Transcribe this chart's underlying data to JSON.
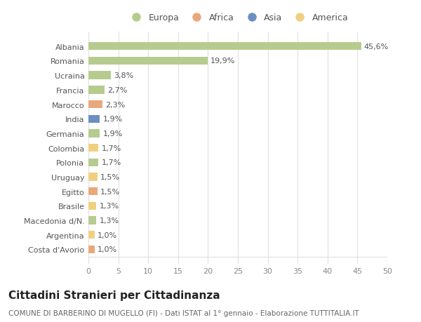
{
  "countries": [
    "Albania",
    "Romania",
    "Ucraina",
    "Francia",
    "Marocco",
    "India",
    "Germania",
    "Colombia",
    "Polonia",
    "Uruguay",
    "Egitto",
    "Brasile",
    "Macedonia d/N.",
    "Argentina",
    "Costa d'Avorio"
  ],
  "values": [
    45.6,
    19.9,
    3.8,
    2.7,
    2.3,
    1.9,
    1.9,
    1.7,
    1.7,
    1.5,
    1.5,
    1.3,
    1.3,
    1.0,
    1.0
  ],
  "labels": [
    "45,6%",
    "19,9%",
    "3,8%",
    "2,7%",
    "2,3%",
    "1,9%",
    "1,9%",
    "1,7%",
    "1,7%",
    "1,5%",
    "1,5%",
    "1,3%",
    "1,3%",
    "1,0%",
    "1,0%"
  ],
  "continents": [
    "Europa",
    "Europa",
    "Europa",
    "Europa",
    "Africa",
    "Asia",
    "Europa",
    "America",
    "Europa",
    "America",
    "Africa",
    "America",
    "Europa",
    "America",
    "Africa"
  ],
  "colors": {
    "Europa": "#b5cc8e",
    "Africa": "#e8a87c",
    "Asia": "#6b8fc4",
    "America": "#f0d080"
  },
  "title": "Cittadini Stranieri per Cittadinanza",
  "subtitle": "COMUNE DI BARBERINO DI MUGELLO (FI) - Dati ISTAT al 1° gennaio - Elaborazione TUTTITALIA.IT",
  "xlim": [
    0,
    50
  ],
  "xticks": [
    0,
    5,
    10,
    15,
    20,
    25,
    30,
    35,
    40,
    45,
    50
  ],
  "background_color": "#ffffff",
  "grid_color": "#e0e0e0",
  "bar_height": 0.55,
  "label_fontsize": 8,
  "tick_fontsize": 8,
  "ytick_fontsize": 8,
  "title_fontsize": 11,
  "subtitle_fontsize": 7.5,
  "legend_fontsize": 9,
  "legend_order": [
    "Europa",
    "Africa",
    "Asia",
    "America"
  ]
}
